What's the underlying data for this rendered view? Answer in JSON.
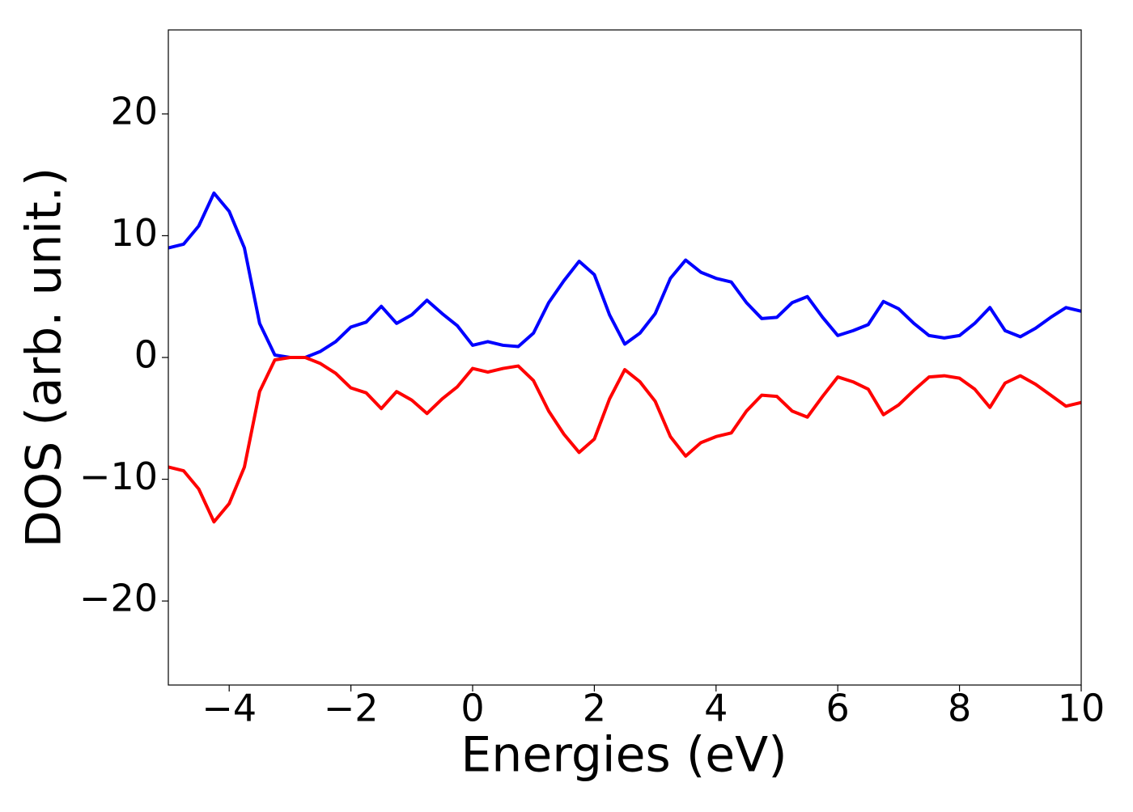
{
  "chart_data": {
    "type": "line",
    "xlabel": "Energies (eV)",
    "ylabel": "DOS (arb. unit.)",
    "x": [
      -5,
      -4.75,
      -4.5,
      -4.25,
      -4,
      -3.75,
      -3.5,
      -3.25,
      -3,
      -2.75,
      -2.5,
      -2.25,
      -2,
      -1.75,
      -1.5,
      -1.25,
      -1,
      -0.75,
      -0.5,
      -0.25,
      0,
      0.25,
      0.5,
      0.75,
      1,
      1.25,
      1.5,
      1.75,
      2,
      2.25,
      2.5,
      2.75,
      3,
      3.25,
      3.5,
      3.75,
      4,
      4.25,
      4.5,
      4.75,
      5,
      5.25,
      5.5,
      5.75,
      6,
      6.25,
      6.5,
      6.75,
      7,
      7.25,
      7.5,
      7.75,
      8,
      8.25,
      8.5,
      8.75,
      9,
      9.25,
      9.5,
      9.75,
      10
    ],
    "series": [
      {
        "color": "#0000ff",
        "values": [
          9.0,
          9.3,
          10.8,
          13.5,
          12.0,
          9.0,
          2.8,
          0.2,
          0,
          0,
          0.5,
          1.3,
          2.5,
          2.9,
          4.2,
          2.8,
          3.5,
          4.7,
          3.6,
          2.6,
          1.0,
          1.3,
          1.0,
          0.9,
          2.0,
          4.5,
          6.3,
          7.9,
          6.8,
          3.5,
          1.1,
          2.0,
          3.6,
          6.5,
          8.0,
          7.0,
          6.5,
          6.2,
          4.5,
          3.2,
          3.3,
          4.5,
          5.0,
          3.3,
          1.8,
          2.2,
          2.7,
          4.6,
          4.0,
          2.8,
          1.8,
          1.6,
          1.8,
          2.8,
          4.1,
          2.2,
          1.7,
          2.4,
          3.3,
          4.1,
          3.8
        ]
      },
      {
        "color": "#ff0000",
        "values": [
          -9.0,
          -9.3,
          -10.8,
          -13.5,
          -12.0,
          -9.0,
          -2.8,
          -0.2,
          0,
          0,
          -0.5,
          -1.3,
          -2.5,
          -2.9,
          -4.2,
          -2.8,
          -3.5,
          -4.6,
          -3.4,
          -2.4,
          -0.9,
          -1.2,
          -0.9,
          -0.7,
          -1.9,
          -4.4,
          -6.3,
          -7.8,
          -6.7,
          -3.4,
          -1.0,
          -2.0,
          -3.6,
          -6.5,
          -8.1,
          -7.0,
          -6.5,
          -6.2,
          -4.4,
          -3.1,
          -3.2,
          -4.4,
          -4.9,
          -3.2,
          -1.6,
          -2.0,
          -2.6,
          -4.7,
          -3.9,
          -2.7,
          -1.6,
          -1.5,
          -1.7,
          -2.6,
          -4.1,
          -2.1,
          -1.5,
          -2.2,
          -3.1,
          -4.0,
          -3.7
        ]
      }
    ],
    "xlim": [
      -5,
      10
    ],
    "xticks": [
      {
        "value": -4,
        "label": "−4"
      },
      {
        "value": -2,
        "label": "−2"
      },
      0,
      2,
      4,
      6,
      8,
      10
    ],
    "ylim": [
      -26.9,
      26.9
    ],
    "yticks": [
      {
        "value": -20,
        "label": "−20"
      },
      {
        "value": -10,
        "label": "−10"
      },
      0,
      10,
      20
    ]
  }
}
